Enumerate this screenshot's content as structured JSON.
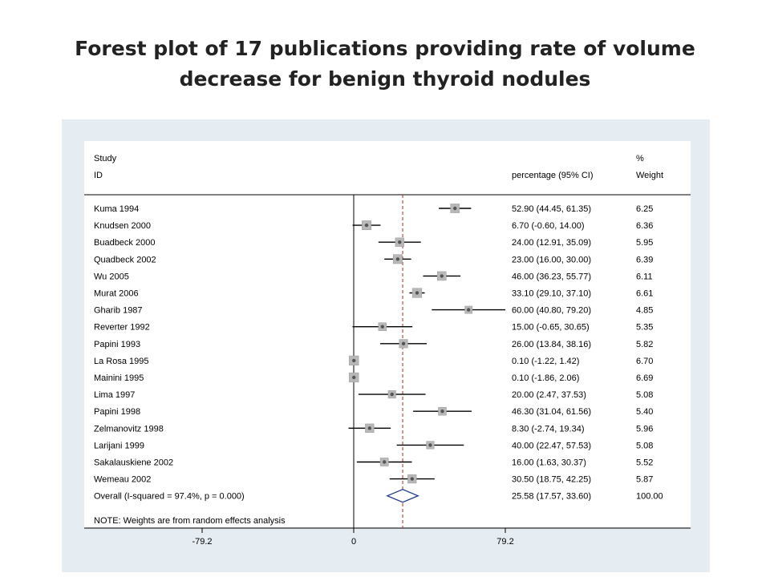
{
  "title_lines": [
    "Forest plot of 17 publications providing rate of volume",
    "decrease for benign thyroid nodules"
  ],
  "colors": {
    "background_panel": "#e6edf2",
    "plot_area": "#ffffff",
    "reference_line": "#a03020",
    "marker": "#555555"
  },
  "chart_data": {
    "type": "forest",
    "header": {
      "study": "Study",
      "id": "ID",
      "ci": "percentage (95% CI)",
      "weight_pct": "%",
      "weight": "Weight"
    },
    "studies": [
      {
        "id": "Kuma 1994",
        "estimate": 52.9,
        "lower": 44.45,
        "upper": 61.35,
        "ci_text": "52.90 (44.45, 61.35)",
        "weight": "6.25"
      },
      {
        "id": "Knudsen 2000",
        "estimate": 6.7,
        "lower": -0.6,
        "upper": 14.0,
        "ci_text": "6.70 (-0.60, 14.00)",
        "weight": "6.36"
      },
      {
        "id": "Buadbeck 2000",
        "estimate": 24.0,
        "lower": 12.91,
        "upper": 35.09,
        "ci_text": "24.00 (12.91, 35.09)",
        "weight": "5.95"
      },
      {
        "id": "Quadbeck 2002",
        "estimate": 23.0,
        "lower": 16.0,
        "upper": 30.0,
        "ci_text": "23.00 (16.00, 30.00)",
        "weight": "6.39"
      },
      {
        "id": "Wu 2005",
        "estimate": 46.0,
        "lower": 36.23,
        "upper": 55.77,
        "ci_text": "46.00 (36.23, 55.77)",
        "weight": "6.11"
      },
      {
        "id": "Murat 2006",
        "estimate": 33.1,
        "lower": 29.1,
        "upper": 37.1,
        "ci_text": "33.10 (29.10, 37.10)",
        "weight": "6.61"
      },
      {
        "id": "Gharib 1987",
        "estimate": 60.0,
        "lower": 40.8,
        "upper": 79.2,
        "ci_text": "60.00 (40.80, 79.20)",
        "weight": "4.85"
      },
      {
        "id": "Reverter 1992",
        "estimate": 15.0,
        "lower": -0.65,
        "upper": 30.65,
        "ci_text": "15.00 (-0.65, 30.65)",
        "weight": "5.35"
      },
      {
        "id": "Papini 1993",
        "estimate": 26.0,
        "lower": 13.84,
        "upper": 38.16,
        "ci_text": "26.00 (13.84, 38.16)",
        "weight": "5.82"
      },
      {
        "id": "La Rosa 1995",
        "estimate": 0.1,
        "lower": -1.22,
        "upper": 1.42,
        "ci_text": "0.10 (-1.22, 1.42)",
        "weight": "6.70"
      },
      {
        "id": "Mainini 1995",
        "estimate": 0.1,
        "lower": -1.86,
        "upper": 2.06,
        "ci_text": "0.10 (-1.86, 2.06)",
        "weight": "6.69"
      },
      {
        "id": "Lima 1997",
        "estimate": 20.0,
        "lower": 2.47,
        "upper": 37.53,
        "ci_text": "20.00 (2.47, 37.53)",
        "weight": "5.08"
      },
      {
        "id": "Papini 1998",
        "estimate": 46.3,
        "lower": 31.04,
        "upper": 61.56,
        "ci_text": "46.30 (31.04, 61.56)",
        "weight": "5.40"
      },
      {
        "id": "Zelmanovitz 1998",
        "estimate": 8.3,
        "lower": -2.74,
        "upper": 19.34,
        "ci_text": "8.30 (-2.74, 19.34)",
        "weight": "5.96"
      },
      {
        "id": "Larijani 1999",
        "estimate": 40.0,
        "lower": 22.47,
        "upper": 57.53,
        "ci_text": "40.00 (22.47, 57.53)",
        "weight": "5.08"
      },
      {
        "id": "Sakalauskiene 2002",
        "estimate": 16.0,
        "lower": 1.63,
        "upper": 30.37,
        "ci_text": "16.00 (1.63, 30.37)",
        "weight": "5.52"
      },
      {
        "id": "Wemeau 2002",
        "estimate": 30.5,
        "lower": 18.75,
        "upper": 42.25,
        "ci_text": "30.50 (18.75, 42.25)",
        "weight": "5.87"
      }
    ],
    "overall": {
      "id": "Overall  (I-squared = 97.4%, p = 0.000)",
      "estimate": 25.58,
      "lower": 17.57,
      "upper": 33.6,
      "ci_text": "25.58 (17.57, 33.60)",
      "weight": "100.00"
    },
    "note": "NOTE: Weights are from random effects analysis",
    "x_ticks": [
      {
        "value": -79.2,
        "label": "-79.2"
      },
      {
        "value": 0,
        "label": "0"
      },
      {
        "value": 79.2,
        "label": "79.2"
      }
    ],
    "xlim": [
      -79.2,
      79.2
    ]
  }
}
